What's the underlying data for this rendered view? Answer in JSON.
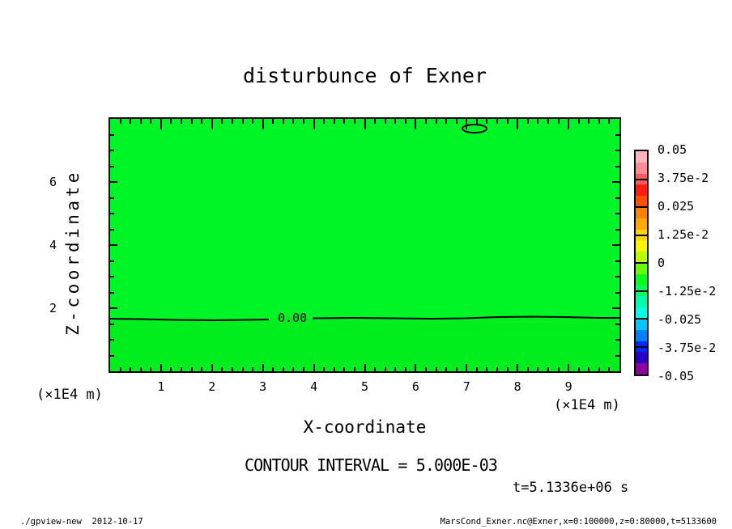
{
  "title": "disturbunce of Exner",
  "footer": {
    "left": "./gpview-new  2012-10-17",
    "right": "MarsCond_Exner.nc@Exner,x=0:100000,z=0:80000,t=5133600"
  },
  "chart_data": {
    "type": "heatmap",
    "title": "disturbunce of Exner",
    "xlabel": "X-coordinate",
    "ylabel": "Z-coordinate",
    "x_unit_label": "(×1E4 m)",
    "z_unit_label": "(×1E4 m)",
    "x_range_1e4m": [
      0,
      10
    ],
    "z_range_1e4m": [
      0,
      8
    ],
    "x_major_ticks": [
      1,
      2,
      3,
      4,
      5,
      6,
      7,
      8,
      9
    ],
    "z_major_ticks": [
      2,
      4,
      6
    ],
    "x_minor_step": 0.2,
    "z_minor_step": 0.5,
    "grid": false,
    "contour_interval_text": "CONTOUR INTERVAL = 5.000E-03",
    "time_text": "t=5.1336e+06 s",
    "zero_contour": {
      "label": "0.00",
      "z_1e4m": 1.7
    },
    "closed_contour": {
      "x_1e4m": 7.16,
      "z_1e4m": 7.68
    },
    "fill_colors": {
      "above_zero_line": "#00f527",
      "below_zero_line": "#00ee1e"
    },
    "colorbar": {
      "position": "right",
      "tick_labels": [
        "0.05",
        "3.75e-2",
        "0.025",
        "1.25e-2",
        "0",
        "-1.25e-2",
        "-0.025",
        "-3.75e-2",
        "-0.05"
      ],
      "value_range": [
        -0.05,
        0.05
      ],
      "step_colors_top_to_bottom": [
        "#ffb4be",
        "#ff8c96",
        "#ff5a5f",
        "#ff1e14",
        "#ff5000",
        "#ff8200",
        "#ffaa00",
        "#ffd200",
        "#fff500",
        "#b9ff00",
        "#69ff00",
        "#0aff1e",
        "#00ff5f",
        "#00ffaa",
        "#00ffe6",
        "#00c8ff",
        "#0082ff",
        "#0028ff",
        "#2800c8",
        "#8c00a0"
      ]
    }
  }
}
